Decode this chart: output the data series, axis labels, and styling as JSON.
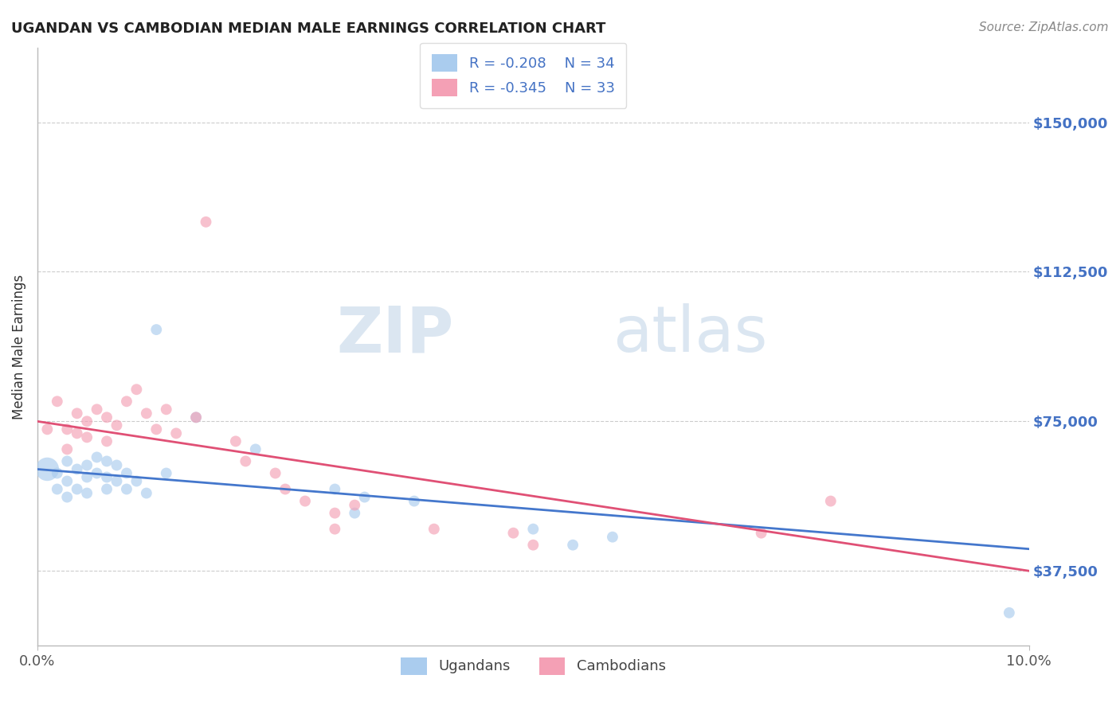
{
  "title": "UGANDAN VS CAMBODIAN MEDIAN MALE EARNINGS CORRELATION CHART",
  "source_text": "Source: ZipAtlas.com",
  "ylabel": "Median Male Earnings",
  "x_min": 0.0,
  "x_max": 0.1,
  "y_min": 18750,
  "y_max": 168750,
  "y_ticks": [
    37500,
    75000,
    112500,
    150000
  ],
  "y_tick_labels": [
    "$37,500",
    "$75,000",
    "$112,500",
    "$150,000"
  ],
  "x_tick_labels_show": [
    "0.0%",
    "10.0%"
  ],
  "x_tick_positions_show": [
    0.0,
    0.1
  ],
  "ugandan_color": "#aaccee",
  "cambodian_color": "#f4a0b5",
  "ugandan_line_color": "#4477cc",
  "cambodian_line_color": "#e05075",
  "legend_label_ugandan": "Ugandans",
  "legend_label_cambodian": "Cambodians",
  "watermark_zip": "ZIP",
  "watermark_atlas": "atlas",
  "background_color": "#ffffff",
  "grid_color": "#cccccc",
  "ugandan_x": [
    0.001,
    0.002,
    0.002,
    0.003,
    0.003,
    0.003,
    0.004,
    0.004,
    0.005,
    0.005,
    0.005,
    0.006,
    0.006,
    0.007,
    0.007,
    0.007,
    0.008,
    0.008,
    0.009,
    0.009,
    0.01,
    0.011,
    0.012,
    0.013,
    0.016,
    0.022,
    0.03,
    0.032,
    0.033,
    0.038,
    0.05,
    0.054,
    0.058,
    0.098
  ],
  "ugandan_y": [
    63000,
    62000,
    58000,
    65000,
    60000,
    56000,
    63000,
    58000,
    64000,
    61000,
    57000,
    66000,
    62000,
    65000,
    61000,
    58000,
    64000,
    60000,
    62000,
    58000,
    60000,
    57000,
    98000,
    62000,
    76000,
    68000,
    58000,
    52000,
    56000,
    55000,
    48000,
    44000,
    46000,
    27000
  ],
  "ugandan_sizes": [
    450,
    100,
    100,
    100,
    100,
    100,
    100,
    100,
    100,
    100,
    100,
    100,
    100,
    100,
    100,
    100,
    100,
    100,
    100,
    100,
    100,
    100,
    100,
    100,
    100,
    100,
    100,
    100,
    100,
    100,
    100,
    100,
    100,
    100
  ],
  "cambodian_x": [
    0.001,
    0.002,
    0.003,
    0.003,
    0.004,
    0.004,
    0.005,
    0.005,
    0.006,
    0.007,
    0.007,
    0.008,
    0.009,
    0.01,
    0.011,
    0.012,
    0.013,
    0.014,
    0.016,
    0.017,
    0.02,
    0.021,
    0.024,
    0.025,
    0.027,
    0.03,
    0.03,
    0.032,
    0.04,
    0.048,
    0.05,
    0.073,
    0.08
  ],
  "cambodian_y": [
    73000,
    80000,
    73000,
    68000,
    77000,
    72000,
    75000,
    71000,
    78000,
    76000,
    70000,
    74000,
    80000,
    83000,
    77000,
    73000,
    78000,
    72000,
    76000,
    125000,
    70000,
    65000,
    62000,
    58000,
    55000,
    52000,
    48000,
    54000,
    48000,
    47000,
    44000,
    47000,
    55000
  ],
  "cambodian_sizes": [
    100,
    100,
    100,
    100,
    100,
    100,
    100,
    100,
    100,
    100,
    100,
    100,
    100,
    100,
    100,
    100,
    100,
    100,
    100,
    100,
    100,
    100,
    100,
    100,
    100,
    100,
    100,
    100,
    100,
    100,
    100,
    100,
    100
  ],
  "blue_line_y0": 63000,
  "blue_line_y1": 43000,
  "pink_line_y0": 75000,
  "pink_line_y1": 37500,
  "title_color": "#222222",
  "source_color": "#888888",
  "axis_label_color": "#4472c4",
  "legend_text_color": "#4472c4",
  "bottom_legend_color": "#444444"
}
